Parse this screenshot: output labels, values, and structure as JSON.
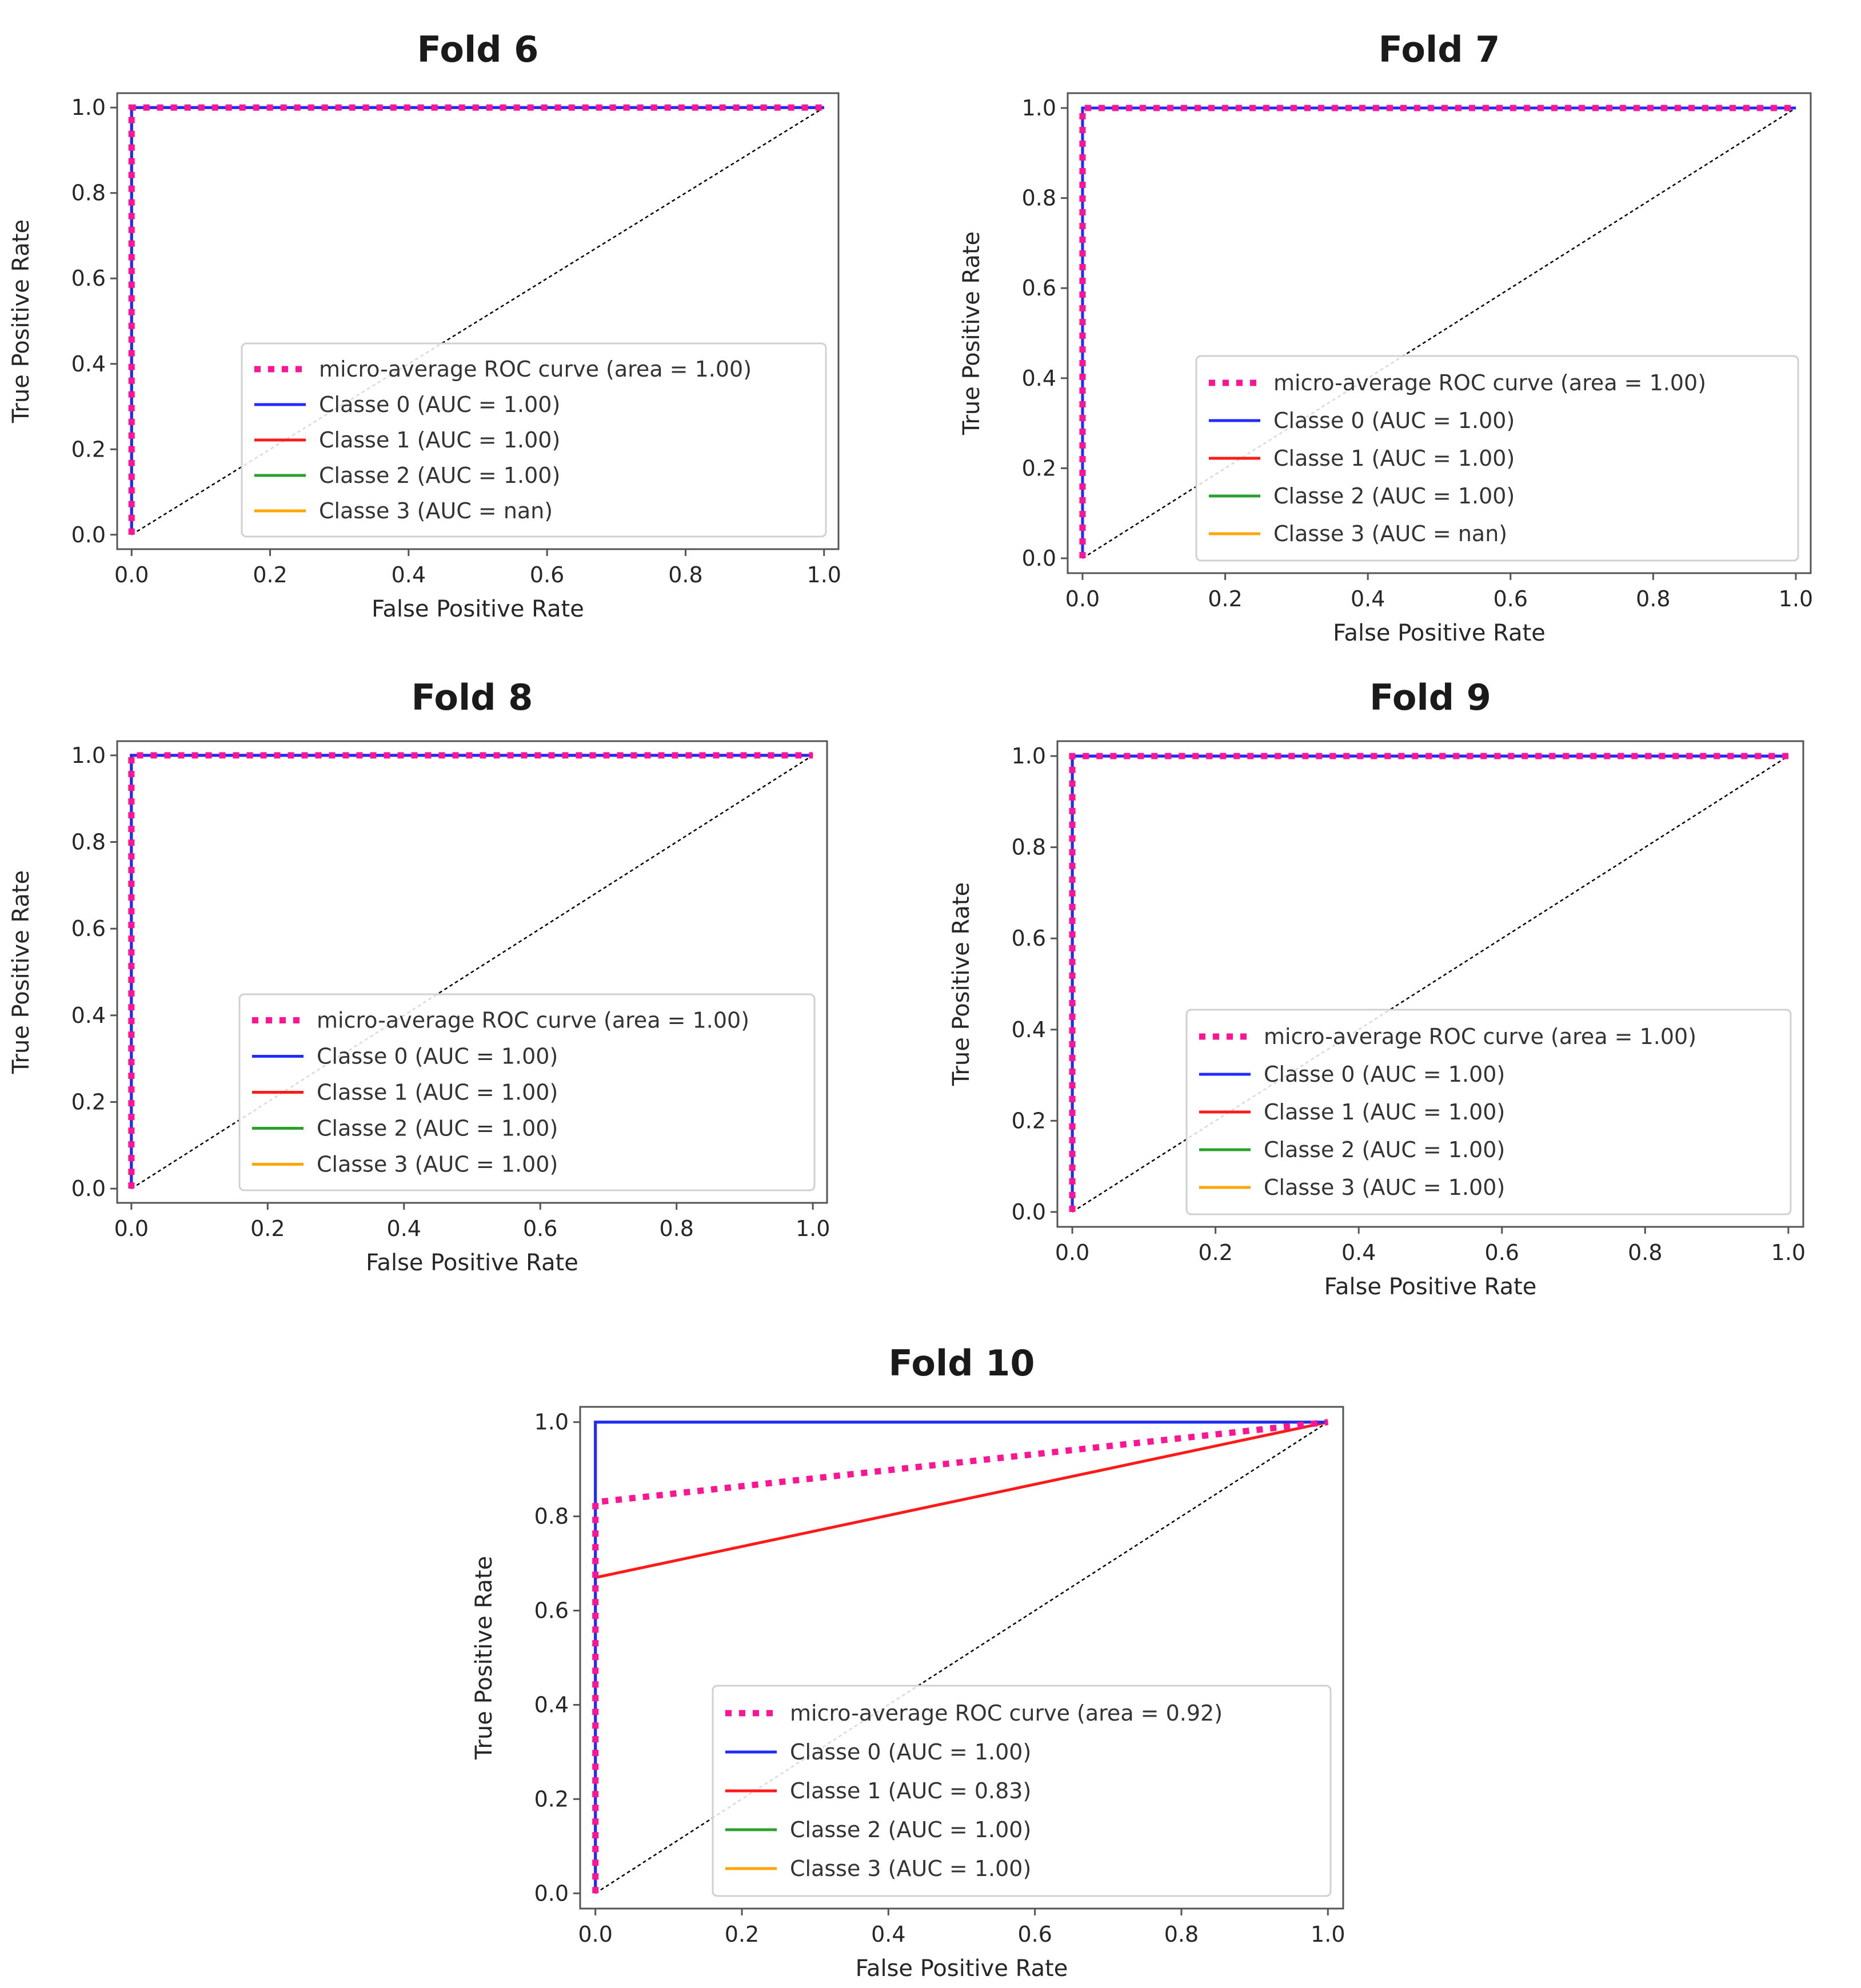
{
  "colors": {
    "micro": "#ff1493",
    "class0": "#1f2bff",
    "class1": "#ff1a1a",
    "class2": "#2ca02c",
    "class3": "#ffa500",
    "diagonal": "#000000",
    "axes": "#555555"
  },
  "chart_data": [
    {
      "type": "line",
      "title": "Fold 6",
      "xlabel": "False Positive Rate",
      "ylabel": "True Positive Rate",
      "xlim": [
        0.0,
        1.0
      ],
      "ylim": [
        0.0,
        1.0
      ],
      "xticks": [
        "0.0",
        "0.2",
        "0.4",
        "0.6",
        "0.8",
        "1.0"
      ],
      "yticks": [
        "0.0",
        "0.2",
        "0.4",
        "0.6",
        "0.8",
        "1.0"
      ],
      "legend_position": "lower-right",
      "series": [
        {
          "name": "micro-average ROC curve (area = 1.00)",
          "key": "micro",
          "style": "dotted",
          "x": [
            0,
            0,
            1
          ],
          "y": [
            0,
            1,
            1
          ]
        },
        {
          "name": "Classe 0 (AUC = 1.00)",
          "key": "class0",
          "style": "solid",
          "x": [
            0,
            0,
            1
          ],
          "y": [
            0,
            1,
            1
          ]
        },
        {
          "name": "Classe 1 (AUC = 1.00)",
          "key": "class1",
          "style": "solid",
          "x": [
            0,
            0,
            1
          ],
          "y": [
            0,
            1,
            1
          ]
        },
        {
          "name": "Classe 2 (AUC = 1.00)",
          "key": "class2",
          "style": "solid",
          "x": [
            0,
            0,
            1
          ],
          "y": [
            0,
            1,
            1
          ]
        },
        {
          "name": "Classe 3 (AUC = nan)",
          "key": "class3",
          "style": "solid",
          "x": [],
          "y": []
        }
      ]
    },
    {
      "type": "line",
      "title": "Fold 7",
      "xlabel": "False Positive Rate",
      "ylabel": "True Positive Rate",
      "xlim": [
        0.0,
        1.0
      ],
      "ylim": [
        0.0,
        1.0
      ],
      "xticks": [
        "0.0",
        "0.2",
        "0.4",
        "0.6",
        "0.8",
        "1.0"
      ],
      "yticks": [
        "0.0",
        "0.2",
        "0.4",
        "0.6",
        "0.8",
        "1.0"
      ],
      "legend_position": "lower-right",
      "series": [
        {
          "name": "micro-average ROC curve (area = 1.00)",
          "key": "micro",
          "style": "dotted",
          "x": [
            0,
            0,
            1
          ],
          "y": [
            0,
            1,
            1
          ]
        },
        {
          "name": "Classe 0 (AUC = 1.00)",
          "key": "class0",
          "style": "solid",
          "x": [
            0,
            0,
            1
          ],
          "y": [
            0,
            1,
            1
          ]
        },
        {
          "name": "Classe 1 (AUC = 1.00)",
          "key": "class1",
          "style": "solid",
          "x": [
            0,
            0,
            1
          ],
          "y": [
            0,
            1,
            1
          ]
        },
        {
          "name": "Classe 2 (AUC = 1.00)",
          "key": "class2",
          "style": "solid",
          "x": [
            0,
            0,
            1
          ],
          "y": [
            0,
            1,
            1
          ]
        },
        {
          "name": "Classe 3 (AUC = nan)",
          "key": "class3",
          "style": "solid",
          "x": [],
          "y": []
        }
      ]
    },
    {
      "type": "line",
      "title": "Fold 8",
      "xlabel": "False Positive Rate",
      "ylabel": "True Positive Rate",
      "xlim": [
        0.0,
        1.0
      ],
      "ylim": [
        0.0,
        1.0
      ],
      "xticks": [
        "0.0",
        "0.2",
        "0.4",
        "0.6",
        "0.8",
        "1.0"
      ],
      "yticks": [
        "0.0",
        "0.2",
        "0.4",
        "0.6",
        "0.8",
        "1.0"
      ],
      "legend_position": "lower-right",
      "series": [
        {
          "name": "micro-average ROC curve (area = 1.00)",
          "key": "micro",
          "style": "dotted",
          "x": [
            0,
            0,
            1
          ],
          "y": [
            0,
            1,
            1
          ]
        },
        {
          "name": "Classe 0 (AUC = 1.00)",
          "key": "class0",
          "style": "solid",
          "x": [
            0,
            0,
            1
          ],
          "y": [
            0,
            1,
            1
          ]
        },
        {
          "name": "Classe 1 (AUC = 1.00)",
          "key": "class1",
          "style": "solid",
          "x": [
            0,
            0,
            1
          ],
          "y": [
            0,
            1,
            1
          ]
        },
        {
          "name": "Classe 2 (AUC = 1.00)",
          "key": "class2",
          "style": "solid",
          "x": [
            0,
            0,
            1
          ],
          "y": [
            0,
            1,
            1
          ]
        },
        {
          "name": "Classe 3 (AUC = 1.00)",
          "key": "class3",
          "style": "solid",
          "x": [
            0,
            0,
            1
          ],
          "y": [
            0,
            1,
            1
          ]
        }
      ]
    },
    {
      "type": "line",
      "title": "Fold 9",
      "xlabel": "False Positive Rate",
      "ylabel": "True Positive Rate",
      "xlim": [
        0.0,
        1.0
      ],
      "ylim": [
        0.0,
        1.0
      ],
      "xticks": [
        "0.0",
        "0.2",
        "0.4",
        "0.6",
        "0.8",
        "1.0"
      ],
      "yticks": [
        "0.0",
        "0.2",
        "0.4",
        "0.6",
        "0.8",
        "1.0"
      ],
      "legend_position": "lower-right",
      "series": [
        {
          "name": "micro-average ROC curve (area = 1.00)",
          "key": "micro",
          "style": "dotted",
          "x": [
            0,
            0,
            1
          ],
          "y": [
            0,
            1,
            1
          ]
        },
        {
          "name": "Classe 0 (AUC = 1.00)",
          "key": "class0",
          "style": "solid",
          "x": [
            0,
            0,
            1
          ],
          "y": [
            0,
            1,
            1
          ]
        },
        {
          "name": "Classe 1 (AUC = 1.00)",
          "key": "class1",
          "style": "solid",
          "x": [
            0,
            0,
            1
          ],
          "y": [
            0,
            1,
            1
          ]
        },
        {
          "name": "Classe 2 (AUC = 1.00)",
          "key": "class2",
          "style": "solid",
          "x": [
            0,
            0,
            1
          ],
          "y": [
            0,
            1,
            1
          ]
        },
        {
          "name": "Classe 3 (AUC = 1.00)",
          "key": "class3",
          "style": "solid",
          "x": [
            0,
            0,
            1
          ],
          "y": [
            0,
            1,
            1
          ]
        }
      ]
    },
    {
      "type": "line",
      "title": "Fold 10",
      "xlabel": "False Positive Rate",
      "ylabel": "True Positive Rate",
      "xlim": [
        0.0,
        1.0
      ],
      "ylim": [
        0.0,
        1.0
      ],
      "xticks": [
        "0.0",
        "0.2",
        "0.4",
        "0.6",
        "0.8",
        "1.0"
      ],
      "yticks": [
        "0.0",
        "0.2",
        "0.4",
        "0.6",
        "0.8",
        "1.0"
      ],
      "legend_position": "lower-right",
      "series": [
        {
          "name": "micro-average ROC curve (area = 0.92)",
          "key": "micro",
          "style": "dotted",
          "x": [
            0,
            0,
            1
          ],
          "y": [
            0,
            0.83,
            1
          ]
        },
        {
          "name": "Classe 0 (AUC = 1.00)",
          "key": "class0",
          "style": "solid",
          "x": [
            0,
            0,
            1
          ],
          "y": [
            0,
            1,
            1
          ]
        },
        {
          "name": "Classe 1 (AUC = 0.83)",
          "key": "class1",
          "style": "solid",
          "x": [
            0,
            0,
            1
          ],
          "y": [
            0,
            0.67,
            1
          ]
        },
        {
          "name": "Classe 2 (AUC = 1.00)",
          "key": "class2",
          "style": "solid",
          "x": [
            0,
            0,
            1
          ],
          "y": [
            0,
            1,
            1
          ]
        },
        {
          "name": "Classe 3 (AUC = 1.00)",
          "key": "class3",
          "style": "solid",
          "x": [
            0,
            0,
            1
          ],
          "y": [
            0,
            1,
            1
          ]
        }
      ]
    }
  ]
}
